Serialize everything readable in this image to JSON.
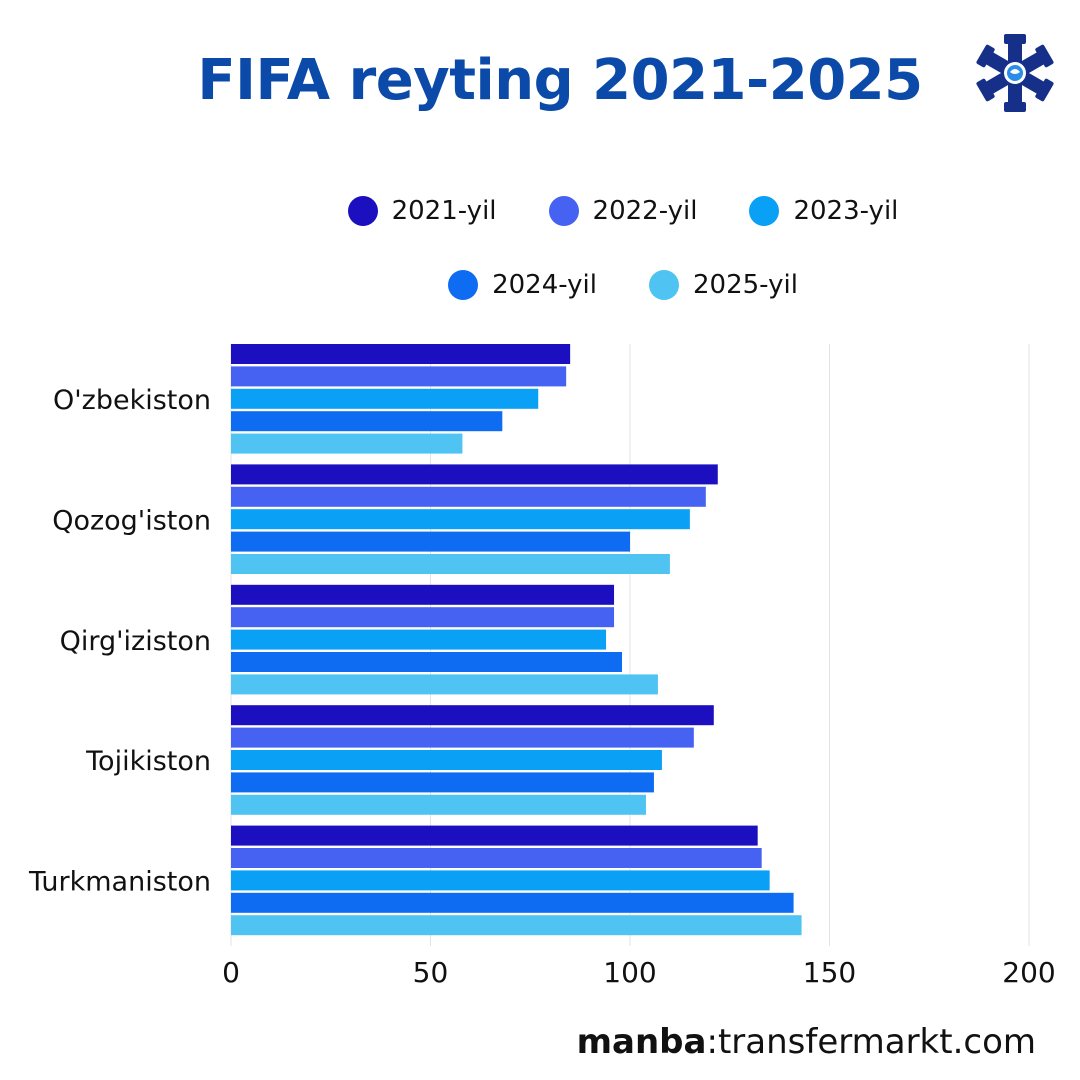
{
  "header": {
    "title": "FIFA reyting 2021-2025"
  },
  "logo": {
    "icon": "snowflake-logo-icon"
  },
  "footer": {
    "source_prefix": "manba",
    "source_separator": ":",
    "source_site": "transfermarkt.com"
  },
  "chart_data": {
    "type": "bar",
    "orientation": "horizontal",
    "title": "FIFA reyting 2021-2025",
    "xlabel": "",
    "ylabel": "",
    "xlim": [
      0,
      200
    ],
    "xticks": [
      0,
      50,
      100,
      150,
      200
    ],
    "grid": true,
    "legend_position": "top",
    "categories": [
      "O'zbekiston",
      "Qozog'iston",
      "Qirg'iziston",
      "Tojikiston",
      "Turkmaniston"
    ],
    "series": [
      {
        "name": "2021-yil",
        "color": "#1c0fbf",
        "values": [
          85,
          122,
          96,
          121,
          132
        ]
      },
      {
        "name": "2022-yil",
        "color": "#4562f2",
        "values": [
          84,
          119,
          96,
          116,
          133
        ]
      },
      {
        "name": "2023-yil",
        "color": "#0aa0f5",
        "values": [
          77,
          115,
          94,
          108,
          135
        ]
      },
      {
        "name": "2024-yil",
        "color": "#0e6cf2",
        "values": [
          68,
          100,
          98,
          106,
          141
        ]
      },
      {
        "name": "2025-yil",
        "color": "#4fc4f2",
        "values": [
          58,
          110,
          107,
          104,
          143
        ]
      }
    ]
  }
}
